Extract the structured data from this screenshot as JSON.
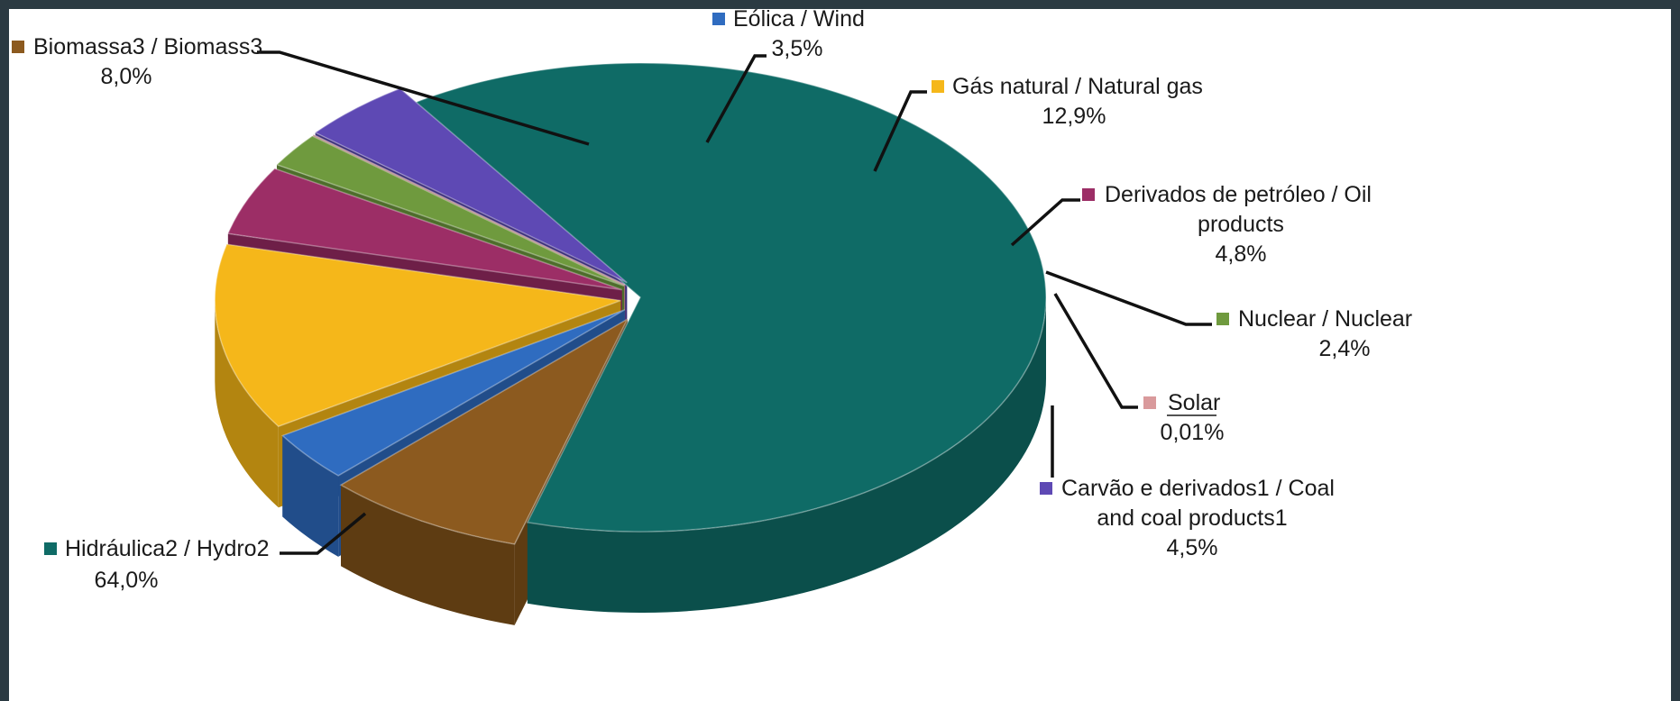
{
  "chart_data": {
    "type": "pie",
    "title": "",
    "slices": [
      {
        "label_line1": "Hidráulica2 / Hydro2",
        "label_line2": "",
        "value_text": "64,0%",
        "value": 64.0,
        "color": "#0f6b66",
        "side_color": "#0b4f4b"
      },
      {
        "label_line1": "Biomassa3 / Biomass3",
        "label_line2": "",
        "value_text": "8,0%",
        "value": 8.0,
        "color": "#8c5a1f",
        "side_color": "#5e3c12"
      },
      {
        "label_line1": "Eólica / Wind",
        "label_line2": "",
        "value_text": "3,5%",
        "value": 3.5,
        "color": "#2f6cc0",
        "side_color": "#214d8a"
      },
      {
        "label_line1": "Gás natural / Natural gas",
        "label_line2": "",
        "value_text": "12,9%",
        "value": 12.9,
        "color": "#f5b71a",
        "side_color": "#b38510"
      },
      {
        "label_line1": "Derivados de petróleo / Oil",
        "label_line2": "products",
        "value_text": "4,8%",
        "value": 4.8,
        "color": "#9c2e66",
        "side_color": "#6e1f48"
      },
      {
        "label_line1": "Nuclear / Nuclear",
        "label_line2": "",
        "value_text": "2,4%",
        "value": 2.4,
        "color": "#6f9a3e",
        "side_color": "#4e6d2b"
      },
      {
        "label_line1": "Solar",
        "label_line2": "",
        "value_text": "0,01%",
        "value": 0.01,
        "color": "#d99a9c",
        "side_color": "#a97375"
      },
      {
        "label_line1": "Carvão e derivados1 / Coal",
        "label_line2": "and coal products1",
        "value_text": "4,5%",
        "value": 4.5,
        "color": "#5e49b4",
        "side_color": "#3b2d7a"
      }
    ],
    "legend": "labels placed around the pie with leader lines"
  }
}
